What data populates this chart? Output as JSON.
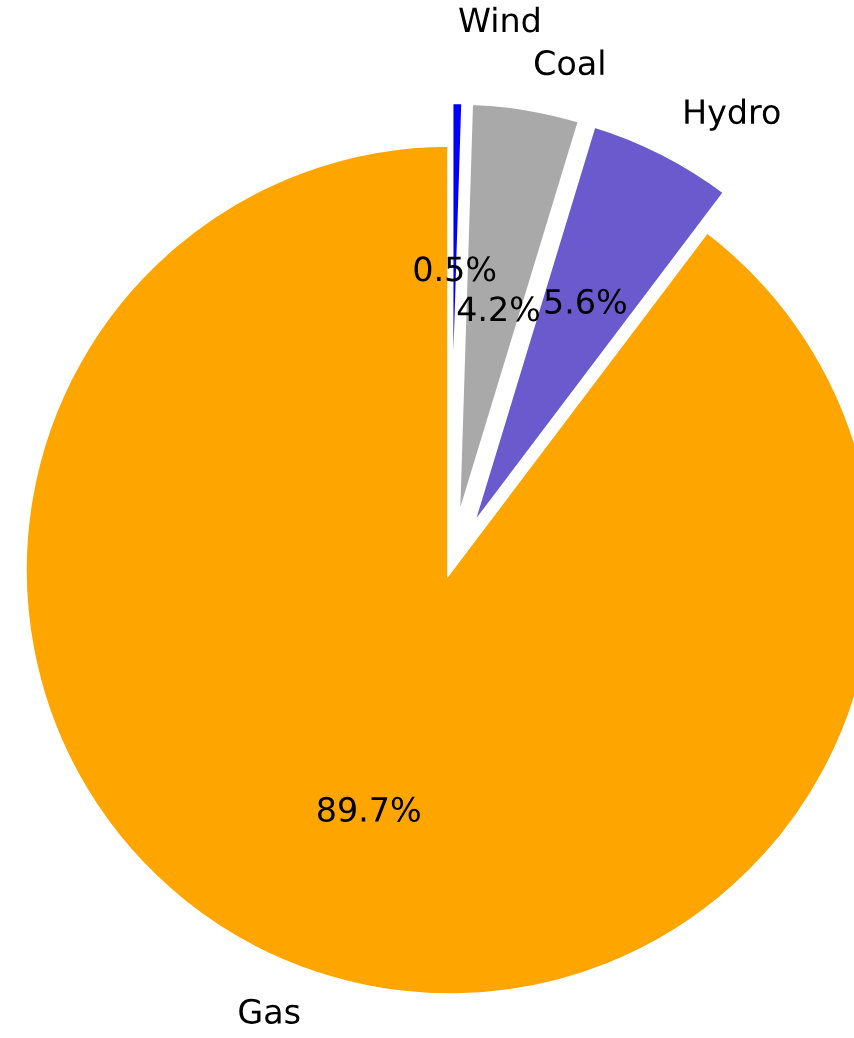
{
  "chart_data": {
    "type": "pie",
    "categories": [
      "Wind",
      "Coal",
      "Hydro",
      "Gas"
    ],
    "values": [
      0.5,
      4.2,
      5.6,
      89.7
    ],
    "colors": [
      "#0000ff",
      "#a9a9a9",
      "#6a5acd",
      "#ffa500"
    ],
    "value_labels": [
      "0.5%",
      "4.2%",
      "5.6%",
      "89.7%"
    ]
  }
}
